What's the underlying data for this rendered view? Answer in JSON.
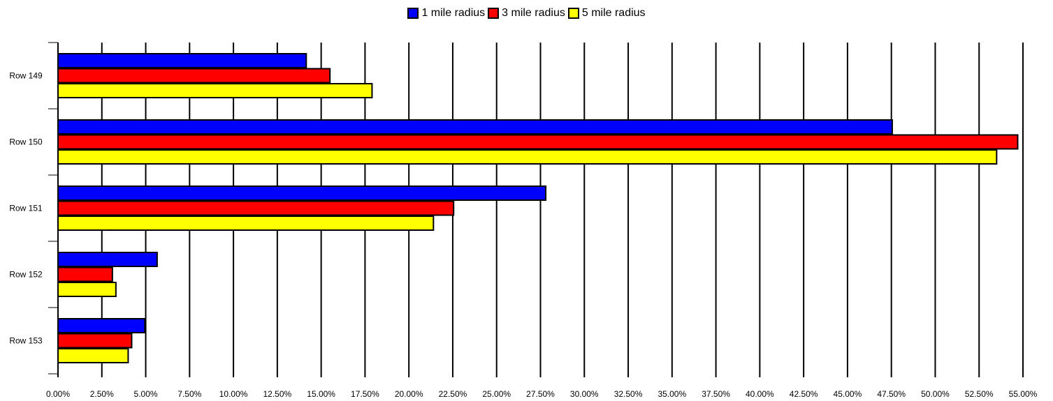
{
  "chart_data": {
    "type": "bar",
    "orientation": "horizontal",
    "title": "",
    "xlabel": "",
    "ylabel": "",
    "categories": [
      "Row 149",
      "Row 150",
      "Row 151",
      "Row 152",
      "Row 153"
    ],
    "series": [
      {
        "name": "1 mile radius",
        "color": "#0000ff",
        "values": [
          14.15,
          47.55,
          27.8,
          5.65,
          4.95
        ]
      },
      {
        "name": "3 mile radius",
        "color": "#ff0000",
        "values": [
          15.5,
          54.7,
          22.55,
          3.1,
          4.2
        ]
      },
      {
        "name": "5 mile radius",
        "color": "#ffff00",
        "values": [
          17.9,
          53.5,
          21.4,
          3.3,
          4.0
        ]
      }
    ],
    "xlim": [
      0,
      55
    ],
    "x_ticks": [
      "0.00%",
      "2.50%",
      "5.00%",
      "7.50%",
      "10.00%",
      "12.50%",
      "15.00%",
      "17.50%",
      "20.00%",
      "22.50%",
      "25.00%",
      "27.50%",
      "30.00%",
      "32.50%",
      "35.00%",
      "37.50%",
      "40.00%",
      "42.50%",
      "45.00%",
      "47.50%",
      "50.00%",
      "52.50%",
      "55.00%"
    ],
    "grid": "vertical",
    "legend_position": "top-center"
  }
}
